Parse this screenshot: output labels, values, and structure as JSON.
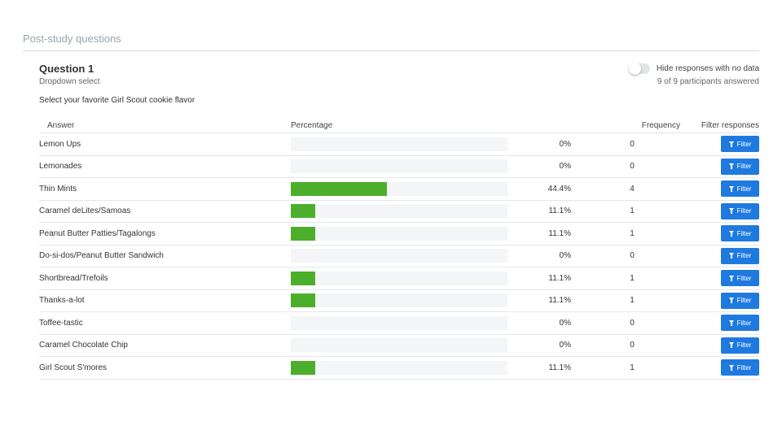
{
  "section_title": "Post-study questions",
  "question": {
    "title": "Question 1",
    "type": "Dropdown select",
    "prompt": "Select your favorite Girl Scout cookie flavor"
  },
  "toggle": {
    "label": "Hide responses with no data",
    "on": false
  },
  "answered": "9 of 9 participants answered",
  "columns": {
    "answer": "Answer",
    "percentage": "Percentage",
    "frequency": "Frequency",
    "filter": "Filter responses"
  },
  "filter_label": "Filter",
  "colors": {
    "bar": "#4caf2b",
    "button": "#1f7ae0"
  },
  "rows": [
    {
      "answer": "Lemon Ups",
      "pct": "0%",
      "value": 0,
      "freq": "0"
    },
    {
      "answer": "Lemonades",
      "pct": "0%",
      "value": 0,
      "freq": "0"
    },
    {
      "answer": "Thin Mints",
      "pct": "44.4%",
      "value": 44.4,
      "freq": "4"
    },
    {
      "answer": "Caramel deLites/Samoas",
      "pct": "11.1%",
      "value": 11.1,
      "freq": "1"
    },
    {
      "answer": "Peanut Butter Patties/Tagalongs",
      "pct": "11.1%",
      "value": 11.1,
      "freq": "1"
    },
    {
      "answer": "Do-si-dos/Peanut Butter Sandwich",
      "pct": "0%",
      "value": 0,
      "freq": "0"
    },
    {
      "answer": "Shortbread/Trefoils",
      "pct": "11.1%",
      "value": 11.1,
      "freq": "1"
    },
    {
      "answer": "Thanks-a-lot",
      "pct": "11.1%",
      "value": 11.1,
      "freq": "1"
    },
    {
      "answer": "Toffee-tastic",
      "pct": "0%",
      "value": 0,
      "freq": "0"
    },
    {
      "answer": "Caramel Chocolate Chip",
      "pct": "0%",
      "value": 0,
      "freq": "0"
    },
    {
      "answer": "Girl Scout S'mores",
      "pct": "11.1%",
      "value": 11.1,
      "freq": "1"
    }
  ]
}
